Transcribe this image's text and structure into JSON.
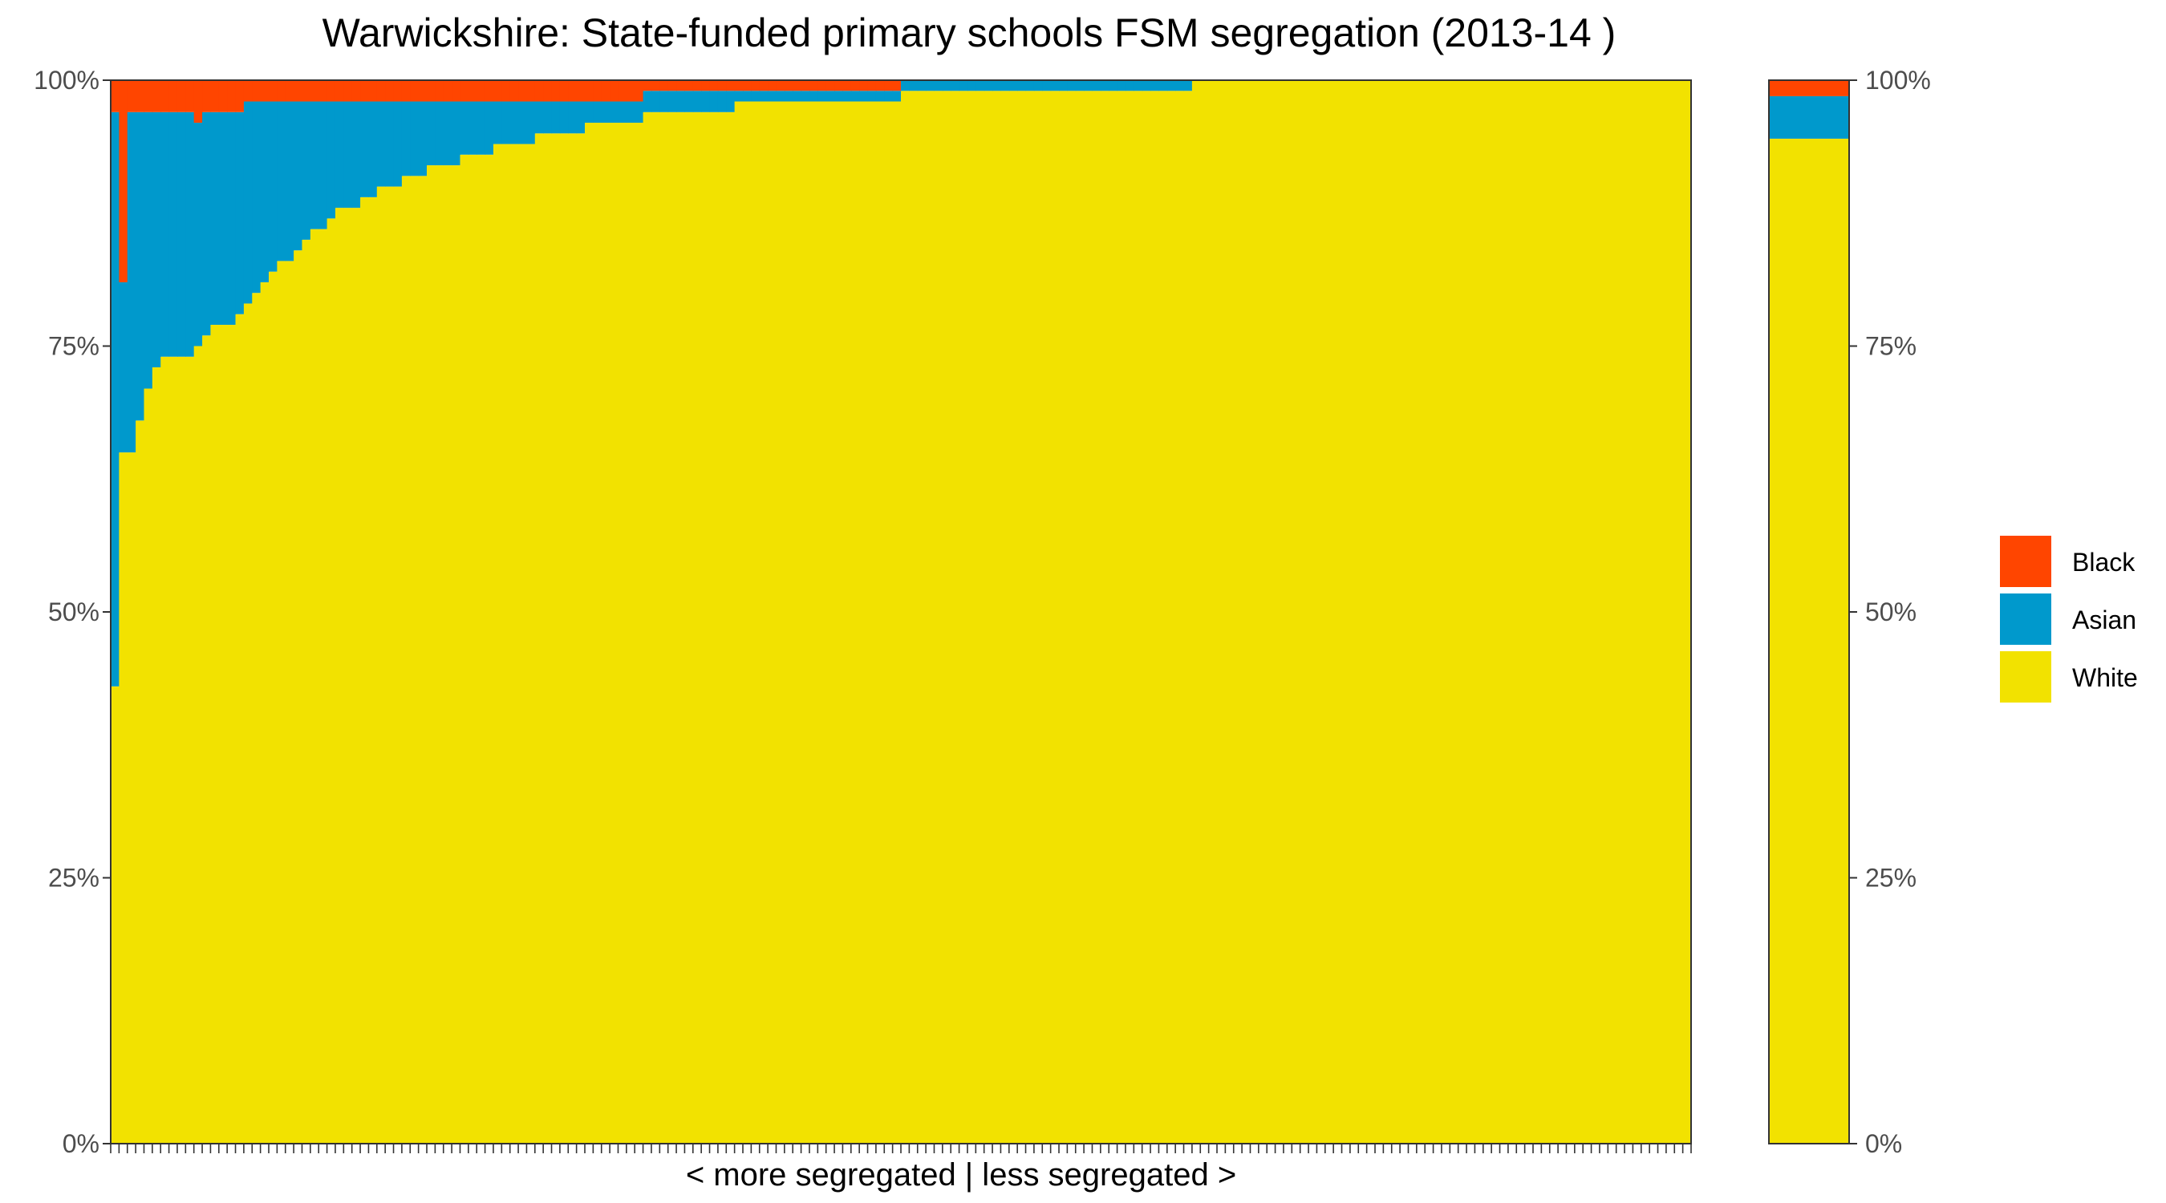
{
  "chart_data": {
    "type": "bar",
    "title": "Warwickshire: State-funded primary schools FSM segregation (2013-14 )",
    "xlabel": "< more segregated | less segregated >",
    "ylabel": "",
    "ylim": [
      0,
      100
    ],
    "y_ticks": [
      "0%",
      "25%",
      "50%",
      "75%",
      "100%"
    ],
    "stacked": true,
    "grid": false,
    "legend_position": "right",
    "colors": {
      "Black": "#FF4500",
      "Asian": "#0099CC",
      "White": "#F2E200"
    },
    "legend": [
      "Black",
      "Asian",
      "White"
    ],
    "num_schools": 190,
    "schools_unit": "percent of FSM pupils",
    "schools_white": [
      43,
      65,
      65,
      68,
      71,
      73,
      74,
      74,
      74,
      74,
      75,
      76,
      77,
      77,
      77,
      78,
      79,
      80,
      81,
      82,
      83,
      83,
      84,
      85,
      86,
      86,
      87,
      88,
      88,
      88,
      89,
      89,
      90,
      90,
      90,
      91,
      91,
      91,
      92,
      92,
      92,
      92,
      93,
      93,
      93,
      93,
      94,
      94,
      94,
      94,
      94,
      95,
      95,
      95,
      95,
      95,
      95,
      96,
      96,
      96,
      96,
      96,
      96,
      96,
      97,
      97,
      97,
      97,
      97,
      97,
      97,
      97,
      97,
      97,
      97,
      98,
      98,
      98,
      98,
      98,
      98,
      98,
      98,
      98,
      98,
      98,
      98,
      98,
      98,
      98,
      98,
      98,
      98,
      98,
      98,
      99,
      99,
      99,
      99,
      99,
      99,
      99,
      99,
      99,
      99,
      99,
      99,
      99,
      99,
      99,
      99,
      99,
      99,
      99,
      99,
      99,
      99,
      99,
      99,
      99,
      99,
      99,
      99,
      99,
      99,
      99,
      99,
      99,
      99,
      99,
      100,
      100,
      100,
      100,
      100,
      100,
      100,
      100,
      100,
      100,
      100,
      100,
      100,
      100,
      100,
      100,
      100,
      100,
      100,
      100,
      100,
      100,
      100,
      100,
      100,
      100,
      100,
      100,
      100,
      100,
      100,
      100,
      100,
      100,
      100,
      100,
      100,
      100,
      100,
      100,
      100,
      100,
      100,
      100,
      100,
      100,
      100,
      100,
      100,
      100,
      100,
      100,
      100,
      100,
      100,
      100,
      100,
      100,
      100,
      100
    ],
    "schools_asian": [
      54,
      16,
      32,
      29,
      26,
      24,
      23,
      23,
      23,
      23,
      21,
      21,
      20,
      20,
      20,
      19,
      19,
      18,
      17,
      16,
      15,
      15,
      14,
      13,
      12,
      12,
      11,
      10,
      10,
      10,
      9,
      9,
      8,
      8,
      8,
      7,
      7,
      7,
      6,
      6,
      6,
      6,
      5,
      5,
      5,
      5,
      4,
      4,
      4,
      4,
      4,
      3,
      3,
      3,
      3,
      3,
      3,
      2,
      2,
      2,
      2,
      2,
      2,
      2,
      2,
      2,
      2,
      2,
      2,
      2,
      2,
      2,
      2,
      2,
      2,
      1,
      1,
      1,
      1,
      1,
      1,
      1,
      1,
      1,
      1,
      1,
      1,
      1,
      1,
      1,
      1,
      1,
      1,
      1,
      1,
      1,
      1,
      1,
      1,
      1,
      1,
      1,
      1,
      1,
      1,
      1,
      1,
      1,
      1,
      1,
      1,
      1,
      1,
      1,
      1,
      1,
      1,
      1,
      1,
      1,
      1,
      1,
      1,
      1,
      1,
      1,
      1,
      1,
      1,
      1,
      0,
      0,
      0,
      0,
      0,
      0,
      0,
      0,
      0,
      0,
      0,
      0,
      0,
      0,
      0,
      0,
      0,
      0,
      0,
      0,
      0,
      0,
      0,
      0,
      0,
      0,
      0,
      0,
      0,
      0,
      0,
      0,
      0,
      0,
      0,
      0,
      0,
      0,
      0,
      0,
      0,
      0,
      0,
      0,
      0,
      0,
      0,
      0,
      0,
      0,
      0,
      0,
      0,
      0,
      0,
      0,
      0,
      0,
      0,
      0
    ],
    "schools_black": [
      3,
      19,
      3,
      3,
      3,
      3,
      3,
      3,
      3,
      3,
      4,
      3,
      3,
      3,
      3,
      3,
      2,
      2,
      2,
      2,
      2,
      2,
      2,
      2,
      2,
      2,
      2,
      2,
      2,
      2,
      2,
      2,
      2,
      2,
      2,
      2,
      2,
      2,
      2,
      2,
      2,
      2,
      2,
      2,
      2,
      2,
      2,
      2,
      2,
      2,
      2,
      2,
      2,
      2,
      2,
      2,
      2,
      2,
      2,
      2,
      2,
      2,
      2,
      2,
      1,
      1,
      1,
      1,
      1,
      1,
      1,
      1,
      1,
      1,
      1,
      1,
      1,
      1,
      1,
      1,
      1,
      1,
      1,
      1,
      1,
      1,
      1,
      1,
      1,
      1,
      1,
      1,
      1,
      1,
      1,
      0,
      0,
      0,
      0,
      0,
      0,
      0,
      0,
      0,
      0,
      0,
      0,
      0,
      0,
      0,
      0,
      0,
      0,
      0,
      0,
      0,
      0,
      0,
      0,
      0,
      0,
      0,
      0,
      0,
      0,
      0,
      0,
      0,
      0,
      0,
      0,
      0,
      0,
      0,
      0,
      0,
      0,
      0,
      0,
      0,
      0,
      0,
      0,
      0,
      0,
      0,
      0,
      0,
      0,
      0,
      0,
      0,
      0,
      0,
      0,
      0,
      0,
      0,
      0,
      0,
      0,
      0,
      0,
      0,
      0,
      0,
      0,
      0,
      0,
      0,
      0,
      0,
      0,
      0,
      0,
      0,
      0,
      0,
      0,
      0,
      0,
      0,
      0,
      0,
      0,
      0,
      0,
      0,
      0,
      0
    ],
    "overall": {
      "White": 94.5,
      "Asian": 4.0,
      "Black": 1.5
    }
  }
}
